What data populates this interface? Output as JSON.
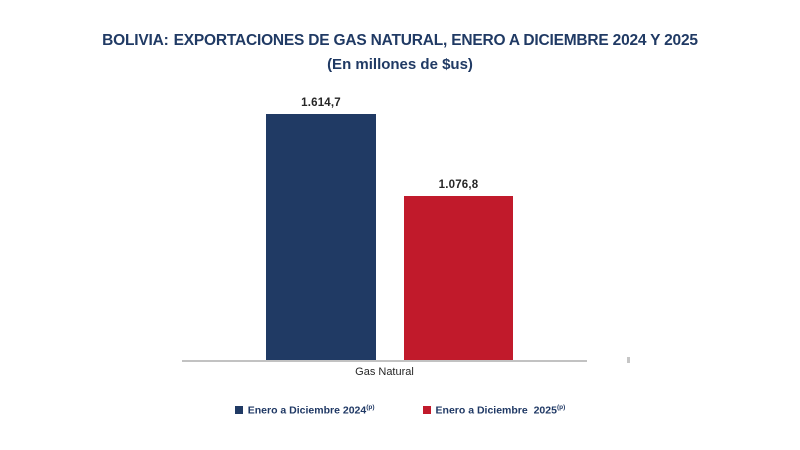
{
  "title": {
    "prefix": "BOLIVIA:",
    "main": "EXPORTACIONES DE GAS NATURAL, ENERO A DICIEMBRE 2024 Y 2025",
    "subtitle": "(En millones de $us)"
  },
  "chart_data": {
    "type": "bar",
    "title": "BOLIVIA: EXPORTACIONES DE GAS NATURAL, ENERO A DICIEMBRE 2024 Y 2025",
    "subtitle": "(En millones de $us)",
    "categories": [
      "Gas Natural"
    ],
    "series": [
      {
        "name": "Enero a Diciembre 2024(p)",
        "values": [
          1614.7
        ],
        "label": "1.614,7",
        "color": "#203A64"
      },
      {
        "name": "Enero a Diciembre 2025(p)",
        "values": [
          1076.8
        ],
        "label": "1.076,8",
        "color": "#C11A2B"
      }
    ],
    "ylim": [
      0,
      1700
    ],
    "grid": false,
    "y_axis_visible": false,
    "legend_position": "bottom",
    "xlabel": "",
    "ylabel": ""
  },
  "axis": {
    "category_label": "Gas Natural"
  },
  "legend": {
    "items": [
      {
        "label": "Enero a Diciembre 2024",
        "superscript": "(p)",
        "color": "#203A64"
      },
      {
        "label": "Enero a Diciembre  2025",
        "superscript": "(p)",
        "color": "#C11A2B"
      }
    ]
  },
  "colors": {
    "title": "#203A64",
    "bar_2024": "#203A64",
    "bar_2025": "#C11A2B",
    "baseline": "#C2C2C2",
    "label_text": "#262626"
  }
}
